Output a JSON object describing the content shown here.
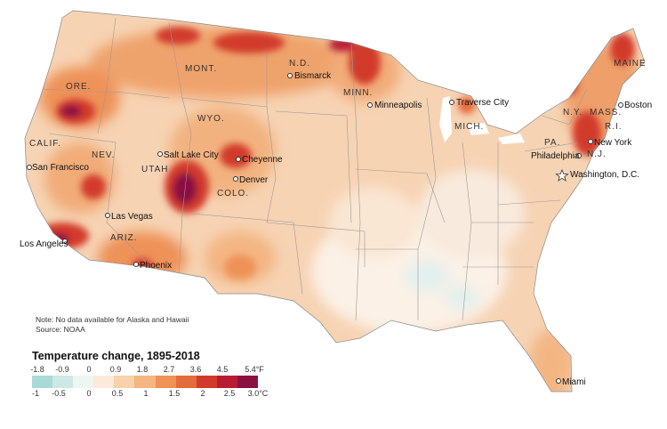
{
  "map": {
    "states": [
      "ORE.",
      "CALIF.",
      "NEV.",
      "MONT.",
      "WYO.",
      "UTAH",
      "COLO.",
      "ARIZ.",
      "N.D.",
      "MINN.",
      "MICH.",
      "N.Y.",
      "PA.",
      "MAINE",
      "MASS.",
      "R.I.",
      "N.J."
    ],
    "cities": [
      "Bismarck",
      "Minneapolis",
      "Traverse City",
      "Boston",
      "New York",
      "Philadelphia",
      "Washington, D.C.",
      "San Francisco",
      "Salt Lake City",
      "Cheyenne",
      "Denver",
      "Las Vegas",
      "Los Angeles",
      "Phoenix",
      "Miami"
    ],
    "land_color": "#f6d3b3"
  },
  "note": {
    "line1": "Note: No data available for Alaska and Hawaii",
    "line2": "Source: NOAA"
  },
  "legend": {
    "title": "Temperature change, 1895-2018",
    "fahrenheit_ticks": [
      "-1.8",
      "-0.9",
      "0",
      "0.9",
      "1.8",
      "2.7",
      "3.6",
      "4.5",
      "5.4°F"
    ],
    "celsius_ticks": [
      "-1",
      "-0.5",
      "0",
      "0.5",
      "1",
      "1.5",
      "2",
      "2.5",
      "3.0°C"
    ],
    "colors": [
      "#a9dad8",
      "#cde8e5",
      "#eef6f1",
      "#fbead9",
      "#f8d2aa",
      "#f4b580",
      "#ee9258",
      "#e46b3b",
      "#d23a2b",
      "#b71c33",
      "#8c1143"
    ]
  }
}
